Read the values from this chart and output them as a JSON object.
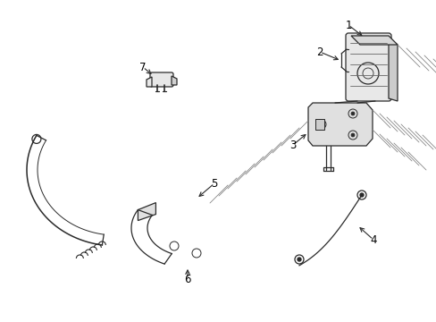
{
  "bg_color": "#ffffff",
  "line_color": "#2a2a2a",
  "label_color": "#000000",
  "hatch_color": "#888888",
  "label_fontsize": 8.5,
  "lw": 0.9
}
